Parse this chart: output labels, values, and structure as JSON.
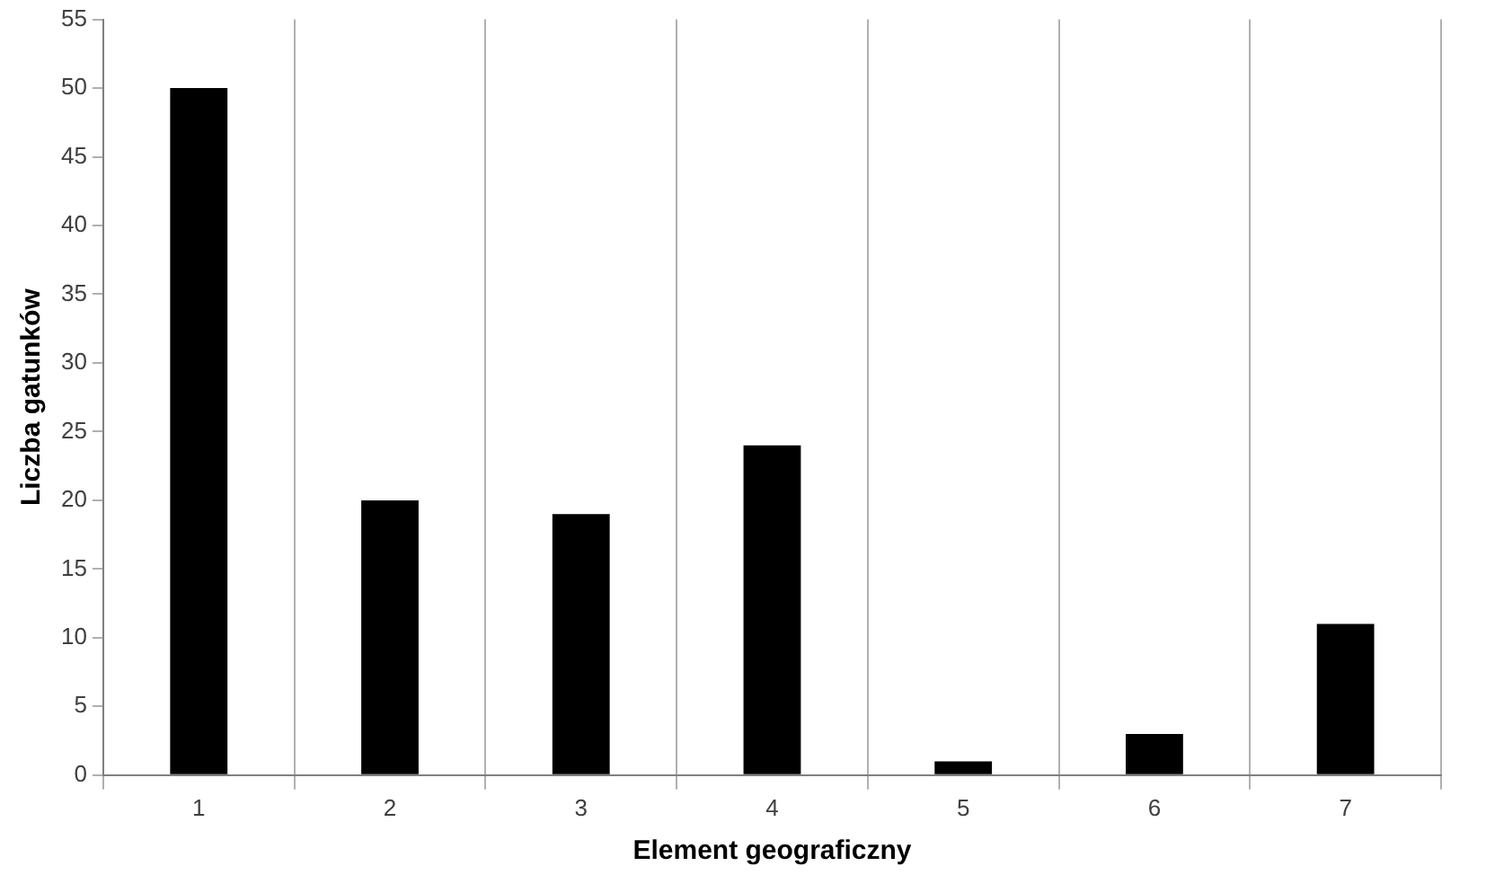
{
  "chart_data": {
    "type": "bar",
    "xlabel": "Element geograficzny",
    "ylabel": "Liczba gatunków",
    "categories": [
      "1",
      "2",
      "3",
      "4",
      "5",
      "6",
      "7"
    ],
    "values": [
      50,
      20,
      19,
      24,
      1,
      3,
      11
    ],
    "color": "#000000",
    "ylim": [
      0,
      55
    ],
    "yticks": [
      0,
      5,
      10,
      15,
      20,
      25,
      30,
      35,
      40,
      45,
      50,
      55
    ],
    "grid": "x",
    "legend": false
  }
}
